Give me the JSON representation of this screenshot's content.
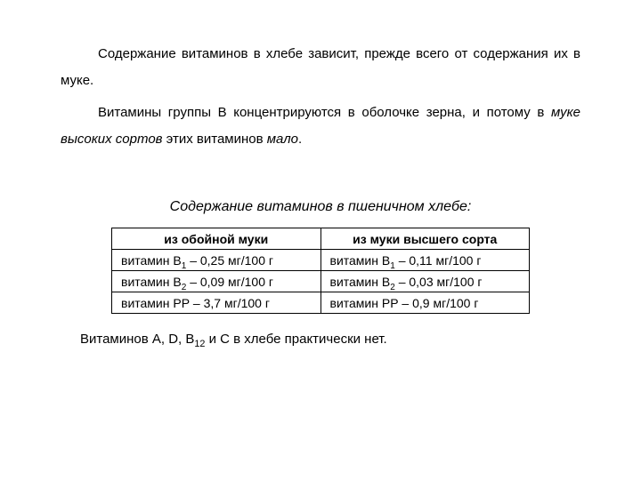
{
  "paragraph1_a": "Содержание витаминов в хлебе зависит, прежде всего от содержания их в муке.",
  "paragraph2_a": "Витамины группы В концентрируются в оболочке зерна, и потому в ",
  "paragraph2_em": "муке высоких сортов",
  "paragraph2_b": " этих витаминов ",
  "paragraph2_em2": "мало",
  "paragraph2_c": ".",
  "subtitle": "Содержание витаминов в пшеничном хлебе:",
  "table": {
    "header": {
      "col1": "из обойной муки",
      "col2": "из муки высшего сорта"
    },
    "rows": [
      {
        "c1_pre": "витамин В",
        "c1_sub": "1",
        "c1_post": " – 0,25 мг/100 г",
        "c2_pre": "витамин В",
        "c2_sub": "1",
        "c2_post": " – 0,11 мг/100 г"
      },
      {
        "c1_pre": "витамин В",
        "c1_sub": "2",
        "c1_post": " – 0,09 мг/100 г",
        "c2_pre": "витамин В",
        "c2_sub": "2",
        "c2_post": " – 0,03 мг/100 г"
      },
      {
        "c1_pre": "витамин РР – 3,7 мг/100 г",
        "c1_sub": "",
        "c1_post": "",
        "c2_pre": "витамин РР – 0,9 мг/100 г",
        "c2_sub": "",
        "c2_post": ""
      }
    ]
  },
  "footnote_a": "Витаминов А, D, В",
  "footnote_sub": "12",
  "footnote_b": " и С в хлебе практически нет.",
  "colors": {
    "background": "#ffffff",
    "text": "#000000",
    "border": "#000000"
  },
  "typography": {
    "body_fontsize": 15,
    "table_fontsize": 14,
    "subtitle_fontsize": 16,
    "font_family": "Arial"
  }
}
